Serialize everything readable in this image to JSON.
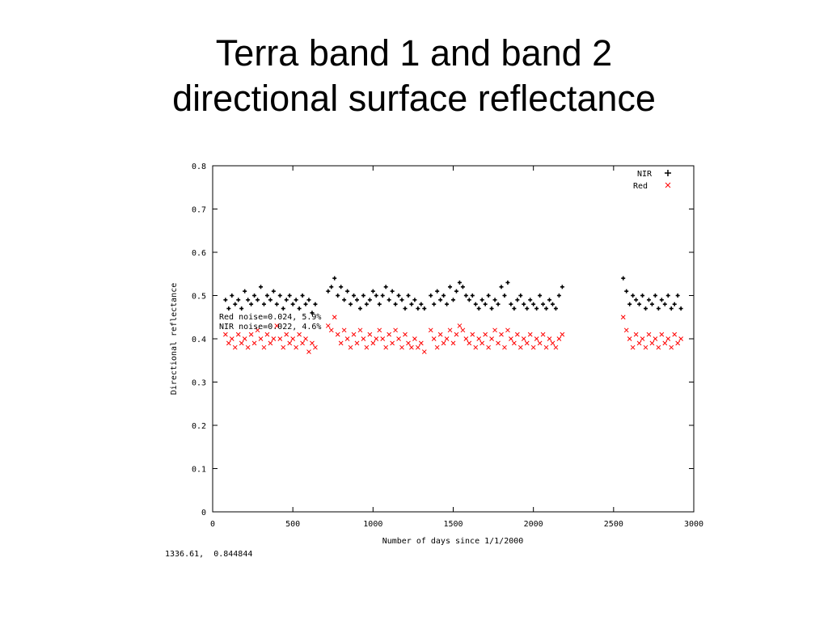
{
  "slide": {
    "title_line1": "Terra band 1 and band 2",
    "title_line2": "directional surface reflectance"
  },
  "cursor_readout": "1336.61,  0.844844",
  "colors": {
    "nir": "#000000",
    "red": "#ff0000",
    "axis": "#000000",
    "background": "#ffffff"
  },
  "chart_data": {
    "type": "scatter",
    "xlabel": "Number of days since 1/1/2000",
    "ylabel": "Directional reflectance",
    "xlim": [
      0,
      3000
    ],
    "ylim": [
      0,
      0.8
    ],
    "x_ticks": [
      0,
      500,
      1000,
      1500,
      2000,
      2500,
      3000
    ],
    "x_tick_labels": [
      "0",
      "500",
      "1000",
      "1500",
      "2000",
      "2500",
      "3000"
    ],
    "y_ticks": [
      0,
      0.1,
      0.2,
      0.3,
      0.4,
      0.5,
      0.6,
      0.7,
      0.8
    ],
    "y_tick_labels": [
      "0",
      "0.1",
      "0.2",
      "0.3",
      "0.4",
      "0.5",
      "0.6",
      "0.7",
      "0.8"
    ],
    "grid": false,
    "legend_position": "top-right",
    "annotations": [
      "Red noise=0.024, 5.9%",
      "NIR noise=0.022, 4.6%"
    ],
    "series": [
      {
        "name": "NIR",
        "marker": "plus",
        "color": "#000000",
        "points": [
          [
            80,
            0.49
          ],
          [
            100,
            0.47
          ],
          [
            120,
            0.5
          ],
          [
            140,
            0.48
          ],
          [
            160,
            0.49
          ],
          [
            180,
            0.47
          ],
          [
            200,
            0.51
          ],
          [
            220,
            0.49
          ],
          [
            240,
            0.48
          ],
          [
            260,
            0.5
          ],
          [
            280,
            0.49
          ],
          [
            300,
            0.52
          ],
          [
            320,
            0.48
          ],
          [
            340,
            0.5
          ],
          [
            360,
            0.49
          ],
          [
            380,
            0.51
          ],
          [
            400,
            0.48
          ],
          [
            420,
            0.5
          ],
          [
            440,
            0.47
          ],
          [
            460,
            0.49
          ],
          [
            480,
            0.5
          ],
          [
            500,
            0.48
          ],
          [
            520,
            0.49
          ],
          [
            540,
            0.47
          ],
          [
            560,
            0.5
          ],
          [
            580,
            0.48
          ],
          [
            600,
            0.49
          ],
          [
            620,
            0.46
          ],
          [
            640,
            0.48
          ],
          [
            720,
            0.51
          ],
          [
            740,
            0.52
          ],
          [
            760,
            0.54
          ],
          [
            780,
            0.5
          ],
          [
            800,
            0.52
          ],
          [
            820,
            0.49
          ],
          [
            840,
            0.51
          ],
          [
            860,
            0.48
          ],
          [
            880,
            0.5
          ],
          [
            900,
            0.49
          ],
          [
            920,
            0.47
          ],
          [
            940,
            0.5
          ],
          [
            960,
            0.48
          ],
          [
            980,
            0.49
          ],
          [
            1000,
            0.51
          ],
          [
            1020,
            0.5
          ],
          [
            1040,
            0.48
          ],
          [
            1060,
            0.5
          ],
          [
            1080,
            0.52
          ],
          [
            1100,
            0.49
          ],
          [
            1120,
            0.51
          ],
          [
            1140,
            0.48
          ],
          [
            1160,
            0.5
          ],
          [
            1180,
            0.49
          ],
          [
            1200,
            0.47
          ],
          [
            1220,
            0.5
          ],
          [
            1240,
            0.48
          ],
          [
            1260,
            0.49
          ],
          [
            1280,
            0.47
          ],
          [
            1300,
            0.48
          ],
          [
            1320,
            0.47
          ],
          [
            1360,
            0.5
          ],
          [
            1380,
            0.48
          ],
          [
            1400,
            0.51
          ],
          [
            1420,
            0.49
          ],
          [
            1440,
            0.5
          ],
          [
            1460,
            0.48
          ],
          [
            1480,
            0.52
          ],
          [
            1500,
            0.49
          ],
          [
            1520,
            0.51
          ],
          [
            1540,
            0.53
          ],
          [
            1560,
            0.52
          ],
          [
            1580,
            0.5
          ],
          [
            1600,
            0.49
          ],
          [
            1620,
            0.5
          ],
          [
            1640,
            0.48
          ],
          [
            1660,
            0.47
          ],
          [
            1680,
            0.49
          ],
          [
            1700,
            0.48
          ],
          [
            1720,
            0.5
          ],
          [
            1740,
            0.47
          ],
          [
            1760,
            0.49
          ],
          [
            1780,
            0.48
          ],
          [
            1800,
            0.52
          ],
          [
            1820,
            0.5
          ],
          [
            1840,
            0.53
          ],
          [
            1860,
            0.48
          ],
          [
            1880,
            0.47
          ],
          [
            1900,
            0.49
          ],
          [
            1920,
            0.5
          ],
          [
            1940,
            0.48
          ],
          [
            1960,
            0.47
          ],
          [
            1980,
            0.49
          ],
          [
            2000,
            0.48
          ],
          [
            2020,
            0.47
          ],
          [
            2040,
            0.5
          ],
          [
            2060,
            0.48
          ],
          [
            2080,
            0.47
          ],
          [
            2100,
            0.49
          ],
          [
            2120,
            0.48
          ],
          [
            2140,
            0.47
          ],
          [
            2160,
            0.5
          ],
          [
            2180,
            0.52
          ],
          [
            2560,
            0.54
          ],
          [
            2580,
            0.51
          ],
          [
            2600,
            0.48
          ],
          [
            2620,
            0.5
          ],
          [
            2640,
            0.49
          ],
          [
            2660,
            0.48
          ],
          [
            2680,
            0.5
          ],
          [
            2700,
            0.47
          ],
          [
            2720,
            0.49
          ],
          [
            2740,
            0.48
          ],
          [
            2760,
            0.5
          ],
          [
            2780,
            0.47
          ],
          [
            2800,
            0.49
          ],
          [
            2820,
            0.48
          ],
          [
            2840,
            0.5
          ],
          [
            2860,
            0.47
          ],
          [
            2880,
            0.48
          ],
          [
            2900,
            0.5
          ],
          [
            2920,
            0.47
          ]
        ]
      },
      {
        "name": "Red",
        "marker": "cross",
        "color": "#ff0000",
        "points": [
          [
            80,
            0.41
          ],
          [
            100,
            0.39
          ],
          [
            120,
            0.4
          ],
          [
            140,
            0.38
          ],
          [
            160,
            0.41
          ],
          [
            180,
            0.39
          ],
          [
            200,
            0.4
          ],
          [
            220,
            0.38
          ],
          [
            240,
            0.41
          ],
          [
            260,
            0.39
          ],
          [
            280,
            0.42
          ],
          [
            300,
            0.4
          ],
          [
            320,
            0.38
          ],
          [
            340,
            0.41
          ],
          [
            360,
            0.39
          ],
          [
            380,
            0.4
          ],
          [
            400,
            0.43
          ],
          [
            420,
            0.4
          ],
          [
            440,
            0.38
          ],
          [
            460,
            0.41
          ],
          [
            480,
            0.39
          ],
          [
            500,
            0.4
          ],
          [
            520,
            0.38
          ],
          [
            540,
            0.41
          ],
          [
            560,
            0.39
          ],
          [
            580,
            0.4
          ],
          [
            600,
            0.37
          ],
          [
            620,
            0.39
          ],
          [
            640,
            0.38
          ],
          [
            720,
            0.43
          ],
          [
            740,
            0.42
          ],
          [
            760,
            0.45
          ],
          [
            780,
            0.41
          ],
          [
            800,
            0.39
          ],
          [
            820,
            0.42
          ],
          [
            840,
            0.4
          ],
          [
            860,
            0.38
          ],
          [
            880,
            0.41
          ],
          [
            900,
            0.39
          ],
          [
            920,
            0.42
          ],
          [
            940,
            0.4
          ],
          [
            960,
            0.38
          ],
          [
            980,
            0.41
          ],
          [
            1000,
            0.39
          ],
          [
            1020,
            0.4
          ],
          [
            1040,
            0.42
          ],
          [
            1060,
            0.4
          ],
          [
            1080,
            0.38
          ],
          [
            1100,
            0.41
          ],
          [
            1120,
            0.39
          ],
          [
            1140,
            0.42
          ],
          [
            1160,
            0.4
          ],
          [
            1180,
            0.38
          ],
          [
            1200,
            0.41
          ],
          [
            1220,
            0.39
          ],
          [
            1240,
            0.38
          ],
          [
            1260,
            0.4
          ],
          [
            1280,
            0.38
          ],
          [
            1300,
            0.39
          ],
          [
            1320,
            0.37
          ],
          [
            1360,
            0.42
          ],
          [
            1380,
            0.4
          ],
          [
            1400,
            0.38
          ],
          [
            1420,
            0.41
          ],
          [
            1440,
            0.39
          ],
          [
            1460,
            0.4
          ],
          [
            1480,
            0.42
          ],
          [
            1500,
            0.39
          ],
          [
            1520,
            0.41
          ],
          [
            1540,
            0.43
          ],
          [
            1560,
            0.42
          ],
          [
            1580,
            0.4
          ],
          [
            1600,
            0.39
          ],
          [
            1620,
            0.41
          ],
          [
            1640,
            0.38
          ],
          [
            1660,
            0.4
          ],
          [
            1680,
            0.39
          ],
          [
            1700,
            0.41
          ],
          [
            1720,
            0.38
          ],
          [
            1740,
            0.4
          ],
          [
            1760,
            0.42
          ],
          [
            1780,
            0.39
          ],
          [
            1800,
            0.41
          ],
          [
            1820,
            0.38
          ],
          [
            1840,
            0.42
          ],
          [
            1860,
            0.4
          ],
          [
            1880,
            0.39
          ],
          [
            1900,
            0.41
          ],
          [
            1920,
            0.38
          ],
          [
            1940,
            0.4
          ],
          [
            1960,
            0.39
          ],
          [
            1980,
            0.41
          ],
          [
            2000,
            0.38
          ],
          [
            2020,
            0.4
          ],
          [
            2040,
            0.39
          ],
          [
            2060,
            0.41
          ],
          [
            2080,
            0.38
          ],
          [
            2100,
            0.4
          ],
          [
            2120,
            0.39
          ],
          [
            2140,
            0.38
          ],
          [
            2160,
            0.4
          ],
          [
            2180,
            0.41
          ],
          [
            2560,
            0.45
          ],
          [
            2580,
            0.42
          ],
          [
            2600,
            0.4
          ],
          [
            2620,
            0.38
          ],
          [
            2640,
            0.41
          ],
          [
            2660,
            0.39
          ],
          [
            2680,
            0.4
          ],
          [
            2700,
            0.38
          ],
          [
            2720,
            0.41
          ],
          [
            2740,
            0.39
          ],
          [
            2760,
            0.4
          ],
          [
            2780,
            0.38
          ],
          [
            2800,
            0.41
          ],
          [
            2820,
            0.39
          ],
          [
            2840,
            0.4
          ],
          [
            2860,
            0.38
          ],
          [
            2880,
            0.41
          ],
          [
            2900,
            0.39
          ],
          [
            2920,
            0.4
          ]
        ]
      }
    ]
  }
}
